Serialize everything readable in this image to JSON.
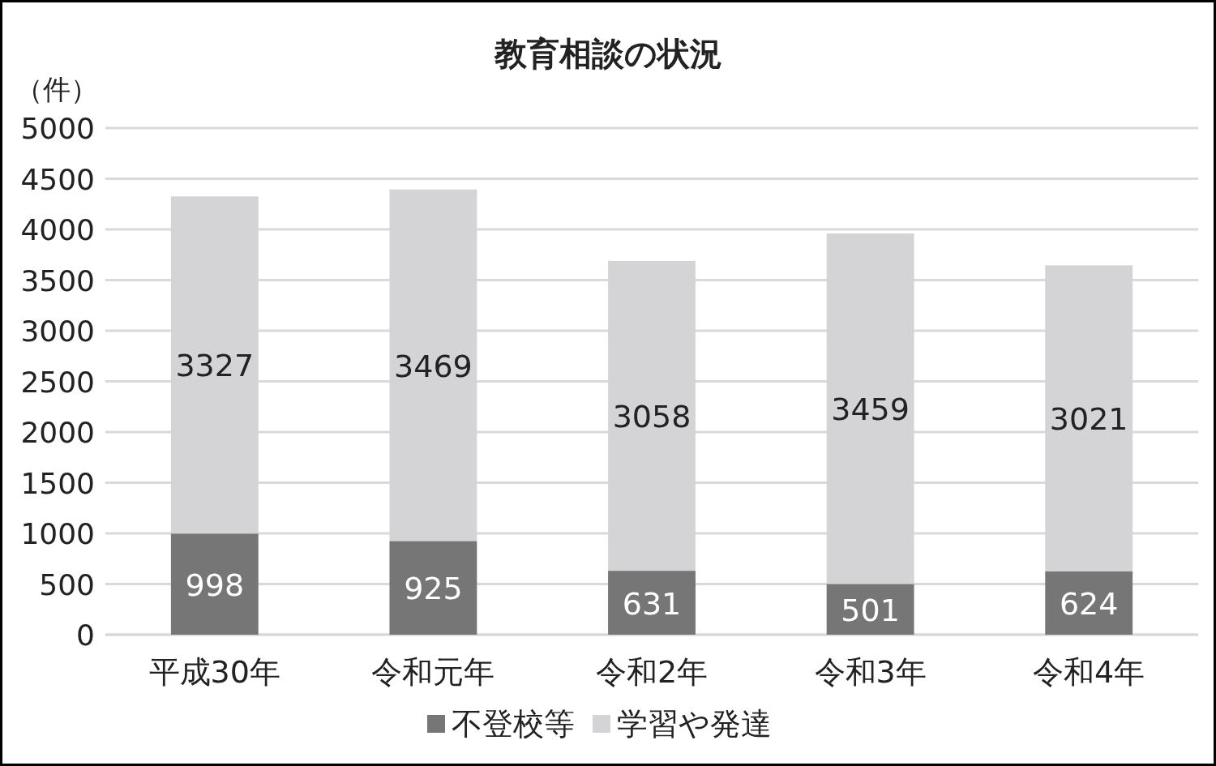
{
  "chart_data": {
    "type": "bar",
    "title": "教育相談の状況",
    "ylabel": "（件）",
    "stacked": true,
    "categories": [
      "平成30年",
      "令和元年",
      "令和2年",
      "令和3年",
      "令和4年"
    ],
    "series": [
      {
        "name": "不登校等",
        "color": "#767676",
        "values": [
          998,
          925,
          631,
          501,
          624
        ]
      },
      {
        "name": "学習や発達",
        "color": "#d4d3d5",
        "values": [
          3327,
          3469,
          3058,
          3459,
          3021
        ]
      }
    ],
    "ylim": [
      0,
      5000
    ],
    "yticks": [
      0,
      500,
      1000,
      1500,
      2000,
      2500,
      3000,
      3500,
      4000,
      4500,
      5000
    ],
    "grid": "y",
    "legend": "bottom",
    "data_labels": true
  }
}
